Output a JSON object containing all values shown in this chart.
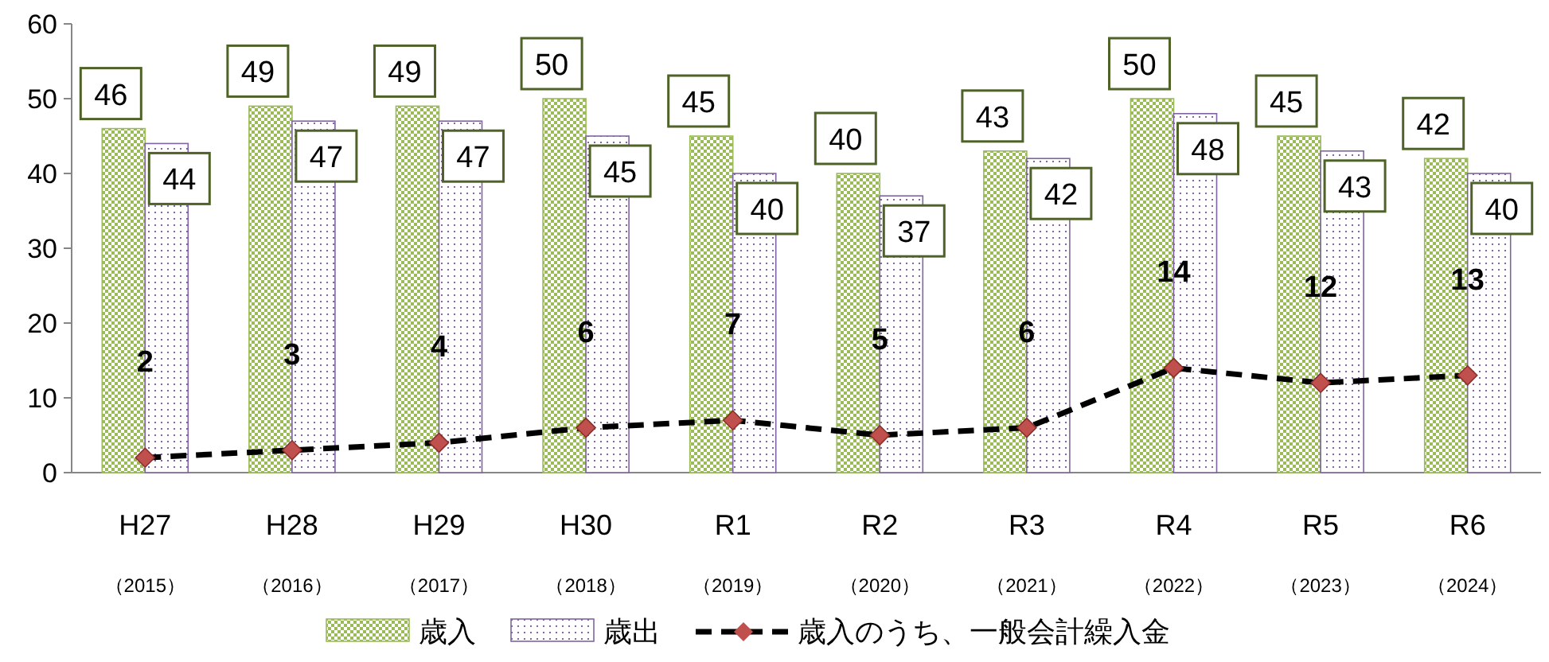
{
  "chart_data": {
    "type": "bar",
    "categories": [
      "H27\n（2015）",
      "H28\n（2016）",
      "H29\n（2017）",
      "H30\n（2018）",
      "R1\n（2019）",
      "R2\n（2020）",
      "R3\n（2021）",
      "R4\n（2022）",
      "R5\n（2023）",
      "R6\n（2024）"
    ],
    "series": [
      {
        "name": "歳入",
        "color": "#9bbb59",
        "values": [
          46,
          49,
          49,
          50,
          45,
          40,
          43,
          50,
          45,
          42
        ]
      },
      {
        "name": "歳出",
        "color": "#8064a2",
        "values": [
          44,
          47,
          47,
          45,
          40,
          37,
          42,
          48,
          43,
          40
        ]
      },
      {
        "name": "歳入のうち、一般会計繰入金",
        "type": "line",
        "color": "#000000",
        "colors": [
          "#c0504d",
          "#c0504d",
          "#c0504d",
          "#c0504d",
          "#c0504d",
          "#c0504d",
          "#c0504d",
          "#c0504d",
          "#c0504d",
          "#c0504d"
        ],
        "values": [
          2,
          3,
          4,
          6,
          7,
          5,
          6,
          14,
          12,
          13
        ]
      }
    ],
    "ylim": [
      0,
      60
    ],
    "yticks": [
      0,
      10,
      20,
      30,
      40,
      50,
      60
    ],
    "data_labels": true,
    "legend": "bottom",
    "marker": "diamond",
    "line_style": "dashed"
  }
}
